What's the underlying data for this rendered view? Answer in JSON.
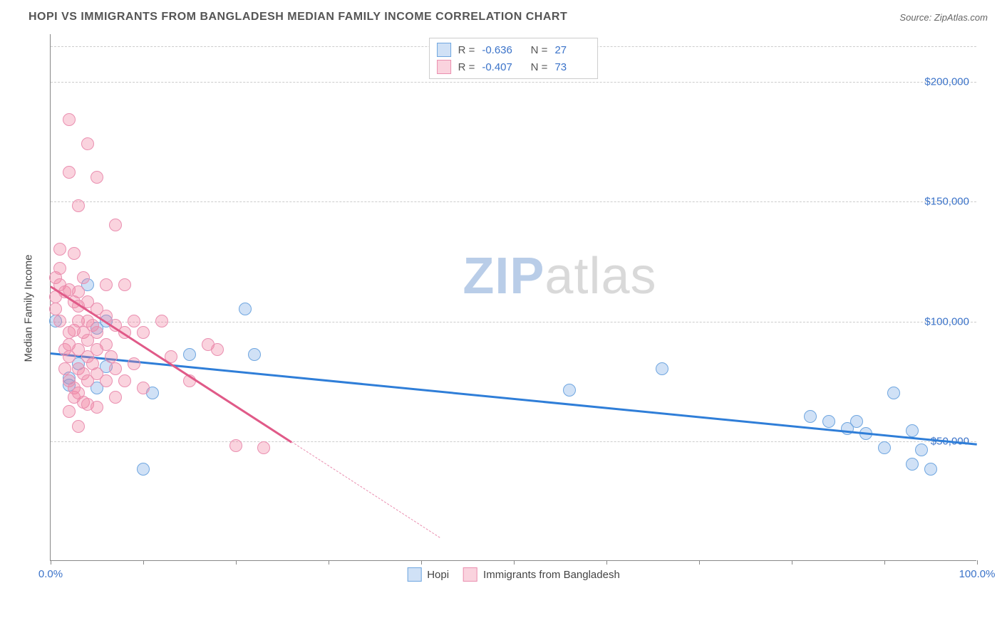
{
  "title": "HOPI VS IMMIGRANTS FROM BANGLADESH MEDIAN FAMILY INCOME CORRELATION CHART",
  "source_label": "Source:",
  "source_name": "ZipAtlas.com",
  "ylabel": "Median Family Income",
  "watermark_bold": "ZIP",
  "watermark_rest": "atlas",
  "watermark_color_bold": "#b9cde8",
  "watermark_color_rest": "#d9d9d9",
  "colors": {
    "blue_fill": "rgba(120,170,230,0.35)",
    "blue_stroke": "#6fa6e0",
    "pink_fill": "rgba(240,130,160,0.35)",
    "pink_stroke": "#ea8fb0",
    "blue_line": "#2f7ed8",
    "pink_line": "#e05a88",
    "tick_text_blue": "#3b73c9",
    "grid": "#cccccc"
  },
  "chart": {
    "type": "scatter",
    "xlim": [
      0,
      100
    ],
    "ylim": [
      0,
      220000
    ],
    "x_ticks": [
      0,
      10,
      20,
      30,
      40,
      50,
      60,
      70,
      80,
      90,
      100
    ],
    "x_tick_labels": {
      "0": "0.0%",
      "100": "100.0%"
    },
    "y_ticks": [
      50000,
      100000,
      150000,
      200000
    ],
    "y_tick_labels": [
      "$50,000",
      "$100,000",
      "$150,000",
      "$200,000"
    ],
    "y_grid_top": 215000,
    "point_radius": 9,
    "series": [
      {
        "name": "Hopi",
        "color_key": "blue",
        "R": "-0.636",
        "N": "27",
        "trend": {
          "x1": 0,
          "y1": 87000,
          "x2": 100,
          "y2": 49000
        },
        "points": [
          [
            0.5,
            100000
          ],
          [
            2,
            76000
          ],
          [
            2,
            73000
          ],
          [
            3,
            82000
          ],
          [
            4,
            115000
          ],
          [
            5,
            97000
          ],
          [
            5,
            72000
          ],
          [
            6,
            100000
          ],
          [
            6,
            81000
          ],
          [
            10,
            38000
          ],
          [
            11,
            70000
          ],
          [
            15,
            86000
          ],
          [
            21,
            105000
          ],
          [
            22,
            86000
          ],
          [
            56,
            71000
          ],
          [
            66,
            80000
          ],
          [
            82,
            60000
          ],
          [
            84,
            58000
          ],
          [
            86,
            55000
          ],
          [
            87,
            58000
          ],
          [
            88,
            53000
          ],
          [
            90,
            47000
          ],
          [
            91,
            70000
          ],
          [
            93,
            54000
          ],
          [
            93,
            40000
          ],
          [
            94,
            46000
          ],
          [
            95,
            38000
          ]
        ]
      },
      {
        "name": "Immigrants from Bangladesh",
        "color_key": "pink",
        "R": "-0.407",
        "N": "73",
        "trend": {
          "x1": 0,
          "y1": 115000,
          "x2": 26,
          "y2": 50000
        },
        "trend_dash": {
          "x1": 26,
          "y1": 50000,
          "x2": 42,
          "y2": 10000
        },
        "points": [
          [
            0.5,
            118000
          ],
          [
            0.5,
            110000
          ],
          [
            0.5,
            105000
          ],
          [
            1,
            130000
          ],
          [
            1,
            122000
          ],
          [
            1,
            115000
          ],
          [
            1,
            100000
          ],
          [
            1.5,
            112000
          ],
          [
            1.5,
            88000
          ],
          [
            1.5,
            80000
          ],
          [
            2,
            184000
          ],
          [
            2,
            162000
          ],
          [
            2,
            113000
          ],
          [
            2,
            95000
          ],
          [
            2,
            90000
          ],
          [
            2,
            85000
          ],
          [
            2,
            75000
          ],
          [
            2,
            62000
          ],
          [
            2.5,
            128000
          ],
          [
            2.5,
            108000
          ],
          [
            2.5,
            96000
          ],
          [
            2.5,
            72000
          ],
          [
            2.5,
            68000
          ],
          [
            3,
            148000
          ],
          [
            3,
            112000
          ],
          [
            3,
            106000
          ],
          [
            3,
            100000
          ],
          [
            3,
            88000
          ],
          [
            3,
            80000
          ],
          [
            3,
            70000
          ],
          [
            3,
            56000
          ],
          [
            3.5,
            118000
          ],
          [
            3.5,
            95000
          ],
          [
            3.5,
            78000
          ],
          [
            3.5,
            66000
          ],
          [
            4,
            174000
          ],
          [
            4,
            108000
          ],
          [
            4,
            100000
          ],
          [
            4,
            92000
          ],
          [
            4,
            85000
          ],
          [
            4,
            75000
          ],
          [
            4,
            65000
          ],
          [
            4.5,
            98000
          ],
          [
            4.5,
            82000
          ],
          [
            5,
            160000
          ],
          [
            5,
            105000
          ],
          [
            5,
            95000
          ],
          [
            5,
            88000
          ],
          [
            5,
            78000
          ],
          [
            5,
            64000
          ],
          [
            6,
            115000
          ],
          [
            6,
            102000
          ],
          [
            6,
            90000
          ],
          [
            6,
            75000
          ],
          [
            6.5,
            85000
          ],
          [
            7,
            140000
          ],
          [
            7,
            98000
          ],
          [
            7,
            80000
          ],
          [
            7,
            68000
          ],
          [
            8,
            115000
          ],
          [
            8,
            95000
          ],
          [
            8,
            75000
          ],
          [
            9,
            100000
          ],
          [
            9,
            82000
          ],
          [
            10,
            95000
          ],
          [
            10,
            72000
          ],
          [
            12,
            100000
          ],
          [
            13,
            85000
          ],
          [
            15,
            75000
          ],
          [
            17,
            90000
          ],
          [
            18,
            88000
          ],
          [
            20,
            48000
          ],
          [
            23,
            47000
          ]
        ]
      }
    ]
  }
}
